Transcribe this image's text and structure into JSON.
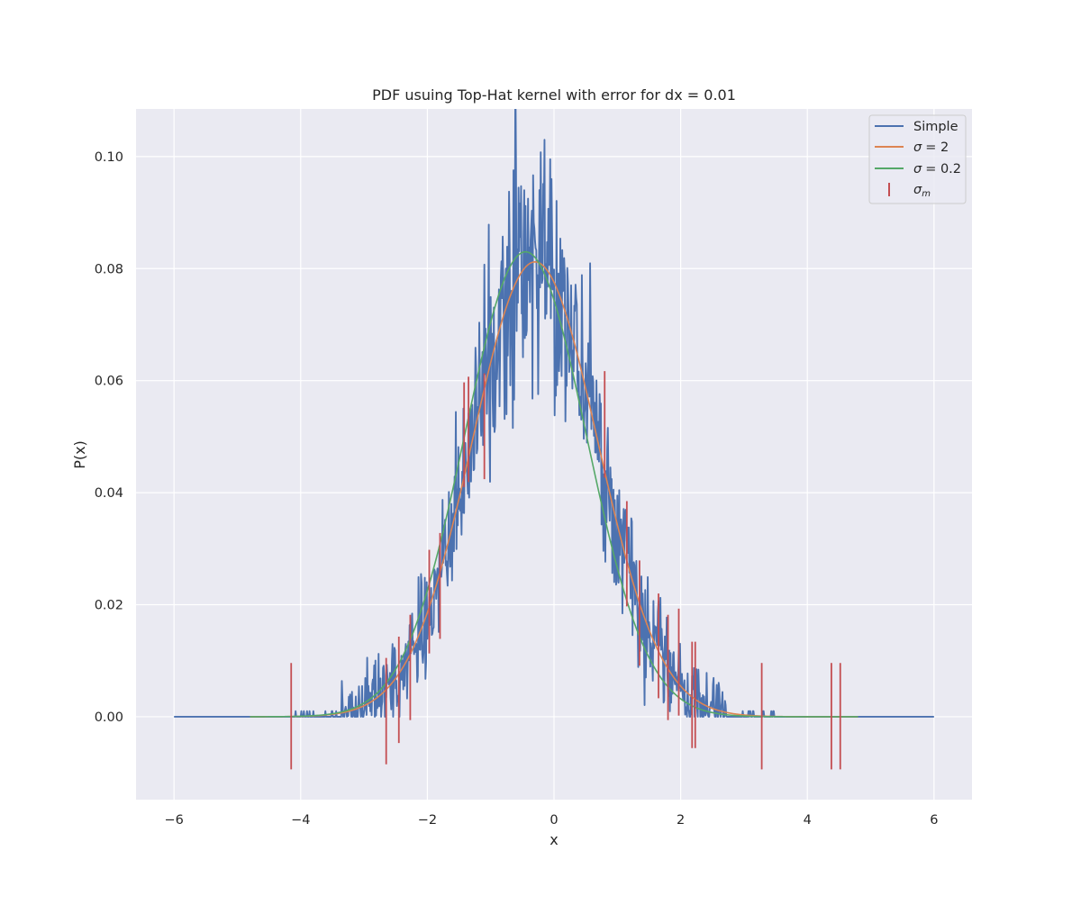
{
  "chart_data": {
    "type": "line",
    "title": "PDF usuing Top-Hat kernel with error for dx = 0.01",
    "xlabel": "x",
    "ylabel": "P(x)",
    "xlim": [
      -6.6,
      6.6
    ],
    "ylim": [
      -0.0148,
      0.1085
    ],
    "x_ticks": [
      -6,
      -4,
      -2,
      0,
      2,
      4,
      6
    ],
    "x_tick_labels": [
      "−6",
      "−4",
      "−2",
      "0",
      "2",
      "4",
      "6"
    ],
    "y_ticks": [
      0.0,
      0.02,
      0.04,
      0.06,
      0.08,
      0.1
    ],
    "y_tick_labels": [
      "0.00",
      "0.02",
      "0.04",
      "0.06",
      "0.08",
      "0.10"
    ],
    "grid": true,
    "legend_position": "upper right",
    "series": [
      {
        "name": "Simple",
        "kind": "noisy_gaussian",
        "color": "#4c72b0",
        "x_range": [
          -6,
          6
        ],
        "dx": 0.01,
        "center": -0.3,
        "sigma": 0.98,
        "amplitude": 0.082,
        "support_range": [
          -4.15,
          3.6
        ],
        "peak_value": 0.103
      },
      {
        "name": "σ = 2",
        "label_symbol": "σ",
        "label_rest": "= 2",
        "kind": "smooth_gaussian",
        "color": "#dd8452",
        "x_range": [
          -4.8,
          4.8
        ],
        "center": -0.3,
        "sigma": 0.99,
        "amplitude": 0.0812
      },
      {
        "name": "σ = 0.2",
        "label_symbol": "σ",
        "label_rest": "= 0.2",
        "kind": "smooth_gaussian",
        "color": "#55a868",
        "x_range": [
          -4.8,
          4.8
        ],
        "center": -0.45,
        "sigma": 0.96,
        "amplitude": 0.083
      }
    ],
    "error_bars": {
      "name": "σm",
      "label_symbol": "σ",
      "label_sub": "m",
      "color": "#c44e52",
      "bars": [
        {
          "x": -4.15,
          "ymin": -0.0094,
          "ymax": 0.0096
        },
        {
          "x": -2.65,
          "ymin": -0.0085,
          "ymax": 0.0105
        },
        {
          "x": -2.45,
          "ymin": -0.0047,
          "ymax": 0.0143
        },
        {
          "x": -2.27,
          "ymin": -0.0006,
          "ymax": 0.0182
        },
        {
          "x": -1.97,
          "ymin": 0.0113,
          "ymax": 0.0298
        },
        {
          "x": -1.8,
          "ymin": 0.0139,
          "ymax": 0.0328
        },
        {
          "x": -1.42,
          "ymin": 0.041,
          "ymax": 0.0597
        },
        {
          "x": -1.35,
          "ymin": 0.0419,
          "ymax": 0.0607
        },
        {
          "x": -1.1,
          "ymin": 0.0424,
          "ymax": 0.0613
        },
        {
          "x": 0.8,
          "ymin": 0.0427,
          "ymax": 0.0617
        },
        {
          "x": 1.15,
          "ymin": 0.0197,
          "ymax": 0.0385
        },
        {
          "x": 1.35,
          "ymin": 0.0091,
          "ymax": 0.0279
        },
        {
          "x": 1.65,
          "ymin": 0.0033,
          "ymax": 0.022
        },
        {
          "x": 1.8,
          "ymin": -0.0006,
          "ymax": 0.0182
        },
        {
          "x": 1.97,
          "ymin": 0.0002,
          "ymax": 0.0193
        },
        {
          "x": 2.18,
          "ymin": -0.0056,
          "ymax": 0.0134
        },
        {
          "x": 2.23,
          "ymin": -0.0056,
          "ymax": 0.0134
        },
        {
          "x": 3.28,
          "ymin": -0.0094,
          "ymax": 0.0096
        },
        {
          "x": 4.38,
          "ymin": -0.0094,
          "ymax": 0.0096
        },
        {
          "x": 4.52,
          "ymin": -0.0094,
          "ymax": 0.0096
        }
      ]
    },
    "colors": {
      "axes_background": "#eaeaf2",
      "grid": "#ffffff",
      "text": "#262626"
    }
  }
}
